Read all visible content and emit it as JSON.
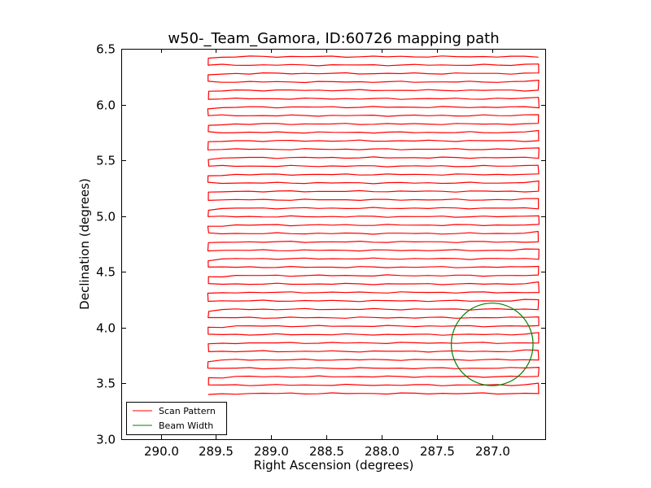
{
  "chart_data": {
    "type": "line",
    "title": "w50-_Team_Gamora, ID:60726 mapping path",
    "xlabel": "Right Ascension (degrees)",
    "ylabel": "Declination (degrees)",
    "xlim": [
      290.35,
      286.52
    ],
    "ylim": [
      3.0,
      6.5
    ],
    "x_reversed": true,
    "xticks": [
      290.0,
      289.5,
      289.0,
      288.5,
      288.0,
      287.5,
      287.0
    ],
    "xtick_labels": [
      "290.0",
      "289.5",
      "289.0",
      "288.5",
      "288.0",
      "287.5",
      "287.0"
    ],
    "yticks": [
      3.0,
      3.5,
      4.0,
      4.5,
      5.0,
      5.5,
      6.0,
      6.5
    ],
    "ytick_labels": [
      "3.0",
      "3.5",
      "4.0",
      "4.5",
      "5.0",
      "5.5",
      "6.0",
      "6.5"
    ],
    "grid": false,
    "legend_position": "lower-left",
    "series": [
      {
        "name": "Scan Pattern",
        "color": "#ff0000",
        "kind": "raster-scan",
        "ra_east": 289.57,
        "ra_west": 286.58,
        "dec_start": 3.41,
        "dec_end": 6.43,
        "row_spacing": 0.075,
        "rows": 41
      },
      {
        "name": "Beam Width",
        "color": "#008000",
        "kind": "circle",
        "center_ra": 287.0,
        "center_dec": 3.85,
        "radius_deg": 0.37
      }
    ]
  }
}
